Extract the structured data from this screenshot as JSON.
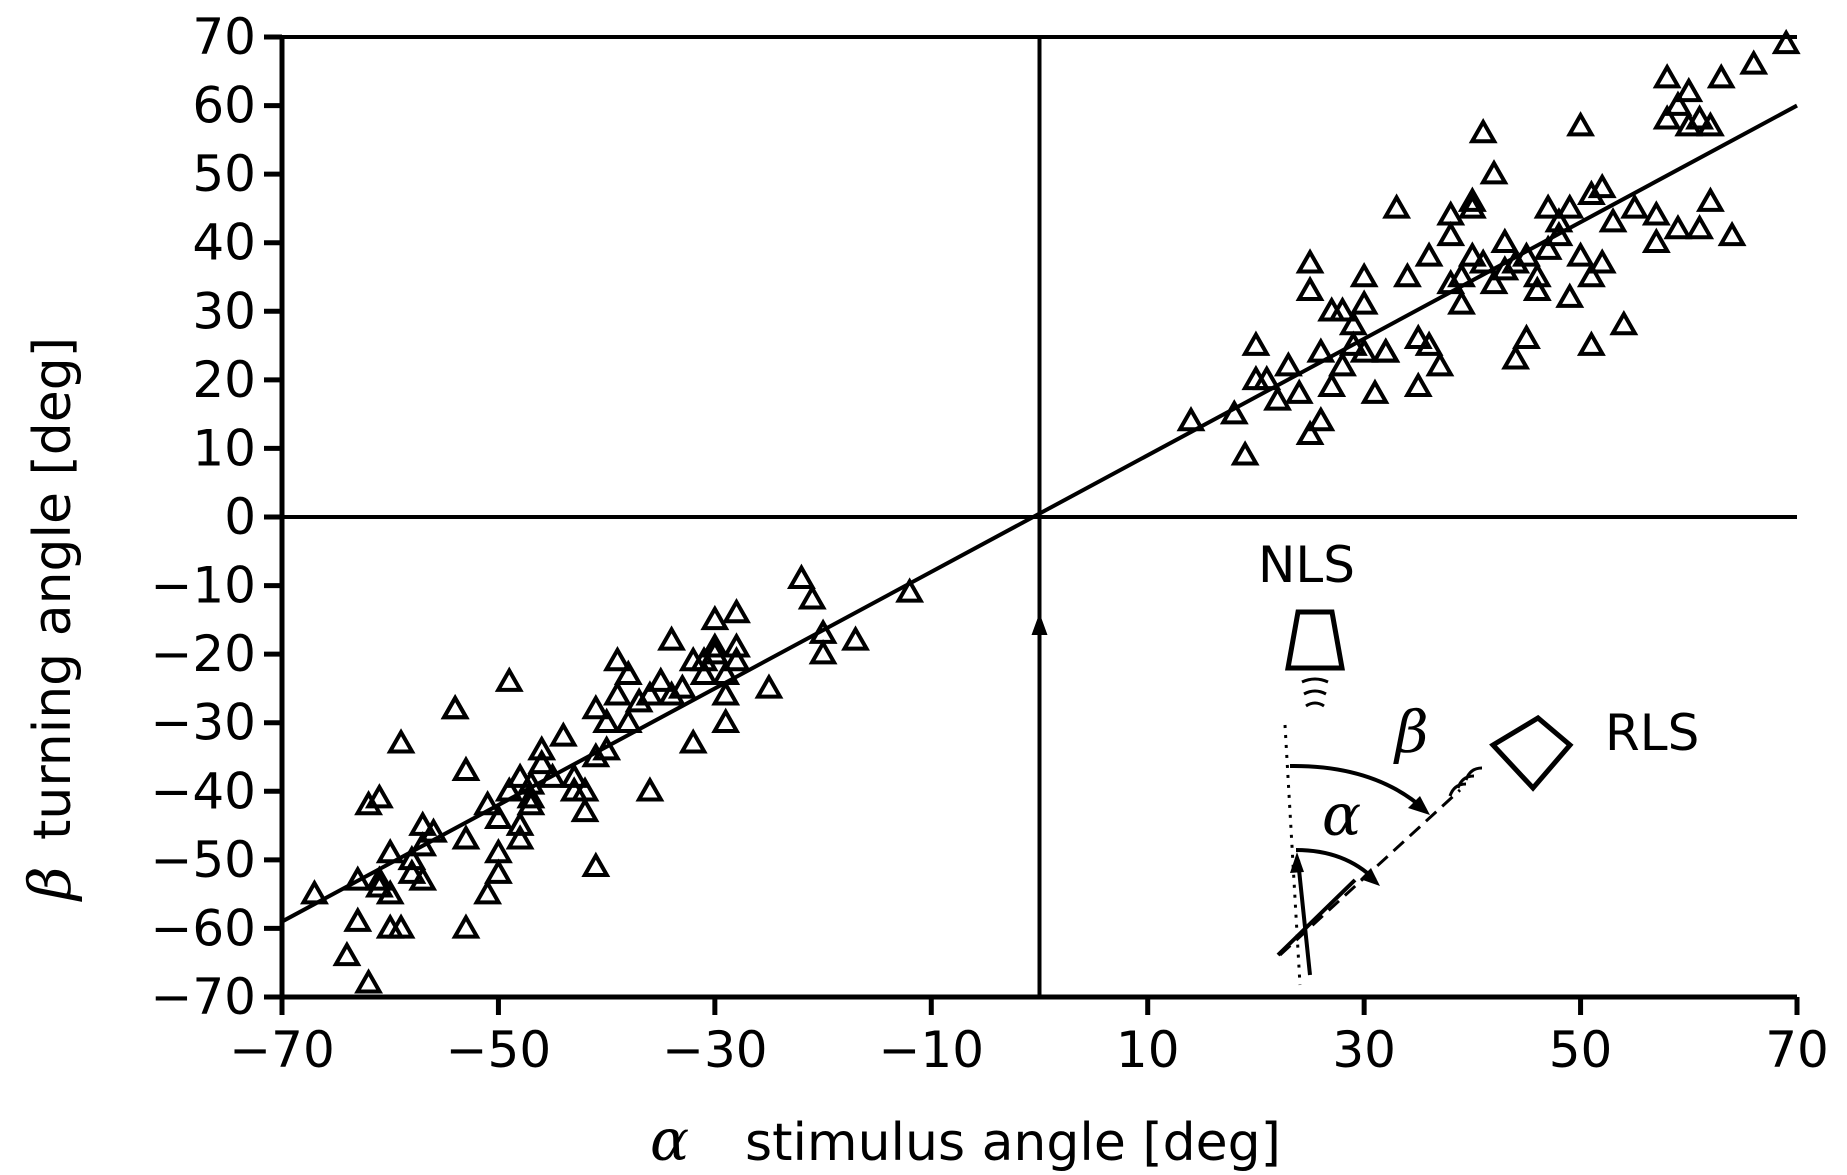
{
  "chart_data": {
    "type": "scatter",
    "xlabel": "stimulus angle [deg]",
    "xlabel_symbol": "α",
    "ylabel": "turning angle [deg]",
    "ylabel_symbol": "β",
    "xlim": [
      -70,
      70
    ],
    "ylim": [
      -70,
      70
    ],
    "xticks": [
      -70,
      -50,
      -30,
      -10,
      10,
      30,
      50,
      70
    ],
    "xtick_labels": [
      "−70",
      "−50",
      "−30",
      "−10",
      "10",
      "30",
      "50",
      "70"
    ],
    "yticks": [
      70,
      60,
      50,
      40,
      30,
      20,
      10,
      0,
      -10,
      -20,
      -30,
      -40,
      -50,
      -60,
      -70
    ],
    "ytick_labels": [
      "70",
      "60",
      "50",
      "40",
      "30",
      "20",
      "10",
      "0",
      "−10",
      "−20",
      "−30",
      "−40",
      "−50",
      "−60",
      "−70"
    ],
    "marker": "open-triangle",
    "regression_line": {
      "x": [
        -70,
        70
      ],
      "y": [
        -59,
        60
      ]
    },
    "reference_lines": {
      "x": 0,
      "y": 0
    },
    "control_arrow": {
      "x": 0,
      "y_from": -70,
      "y_to": -14,
      "label": ""
    },
    "points": {
      "x": [
        -67,
        -63,
        -63,
        -62,
        -61,
        -61,
        -60,
        -60,
        -60,
        -59,
        -59,
        -58,
        -58,
        -57,
        -57,
        -57,
        -56,
        -54,
        -54,
        -53,
        -53,
        -53,
        -51,
        -51,
        -50,
        -50,
        -50,
        -49,
        -49,
        -48,
        -48,
        -48,
        -47,
        -47,
        -47,
        -46,
        -46,
        -45,
        -44,
        -43,
        -43,
        -42,
        -42,
        -41,
        -41,
        -41,
        -40,
        -40,
        -39,
        -39,
        -38,
        -38,
        -37,
        -36,
        -36,
        -35,
        -34,
        -34,
        -33,
        -32,
        -32,
        -31,
        -31,
        -30,
        -30,
        -30,
        -29,
        -29,
        -29,
        -28,
        -28,
        -28,
        -25,
        -22,
        -21,
        -20,
        -20,
        -17,
        -12,
        -62,
        -64,
        -61,
        14,
        18,
        19,
        20,
        20,
        21,
        22,
        23,
        24,
        25,
        25,
        25,
        26,
        26,
        27,
        27,
        28,
        28,
        29,
        29,
        30,
        30,
        30,
        31,
        32,
        32,
        33,
        34,
        35,
        35,
        36,
        36,
        37,
        38,
        38,
        38,
        39,
        39,
        40,
        40,
        40,
        41,
        41,
        42,
        42,
        43,
        43,
        44,
        44,
        45,
        45,
        46,
        46,
        47,
        47,
        48,
        48,
        49,
        49,
        50,
        50,
        51,
        51,
        51,
        52,
        52,
        53,
        54,
        55,
        57,
        57,
        58,
        58,
        59,
        59,
        60,
        60,
        61,
        61,
        62,
        62,
        63,
        64,
        66,
        69
      ],
      "y": [
        -55,
        -53,
        -59,
        -68,
        -41,
        -54,
        -49,
        -55,
        -60,
        -33,
        -60,
        -52,
        -50,
        -45,
        -48,
        -53,
        -46,
        -28,
        -28,
        -37,
        -47,
        -60,
        -42,
        -55,
        -44,
        -49,
        -52,
        -40,
        -24,
        -38,
        -47,
        -45,
        -39,
        -41,
        -42,
        -34,
        -36,
        -38,
        -32,
        -38,
        -40,
        -43,
        -40,
        -35,
        -51,
        -28,
        -30,
        -34,
        -21,
        -26,
        -23,
        -30,
        -27,
        -26,
        -40,
        -24,
        -18,
        -26,
        -25,
        -21,
        -33,
        -21,
        -23,
        -15,
        -20,
        -19,
        -23,
        -26,
        -30,
        -19,
        -21,
        -14,
        -25,
        -9,
        -12,
        -17,
        -20,
        -18,
        -11,
        -42,
        -64,
        -53,
        14,
        15,
        9,
        25,
        20,
        20,
        17,
        22,
        18,
        37,
        33,
        12,
        14,
        24,
        19,
        30,
        22,
        30,
        28,
        25,
        24,
        35,
        31,
        18,
        24,
        24,
        45,
        35,
        26,
        19,
        38,
        25,
        22,
        44,
        34,
        41,
        31,
        35,
        45,
        38,
        46,
        56,
        37,
        34,
        50,
        36,
        40,
        23,
        37,
        26,
        38,
        33,
        35,
        45,
        39,
        43,
        41,
        32,
        45,
        38,
        57,
        35,
        47,
        25,
        48,
        37,
        43,
        28,
        45,
        44,
        40,
        64,
        58,
        60,
        42,
        62,
        57,
        42,
        58,
        57,
        46,
        64,
        41,
        66,
        69
      ]
    }
  },
  "inset": {
    "nls_label": "NLS",
    "rls_label": "RLS",
    "beta_symbol": "β",
    "alpha_symbol": "α"
  }
}
